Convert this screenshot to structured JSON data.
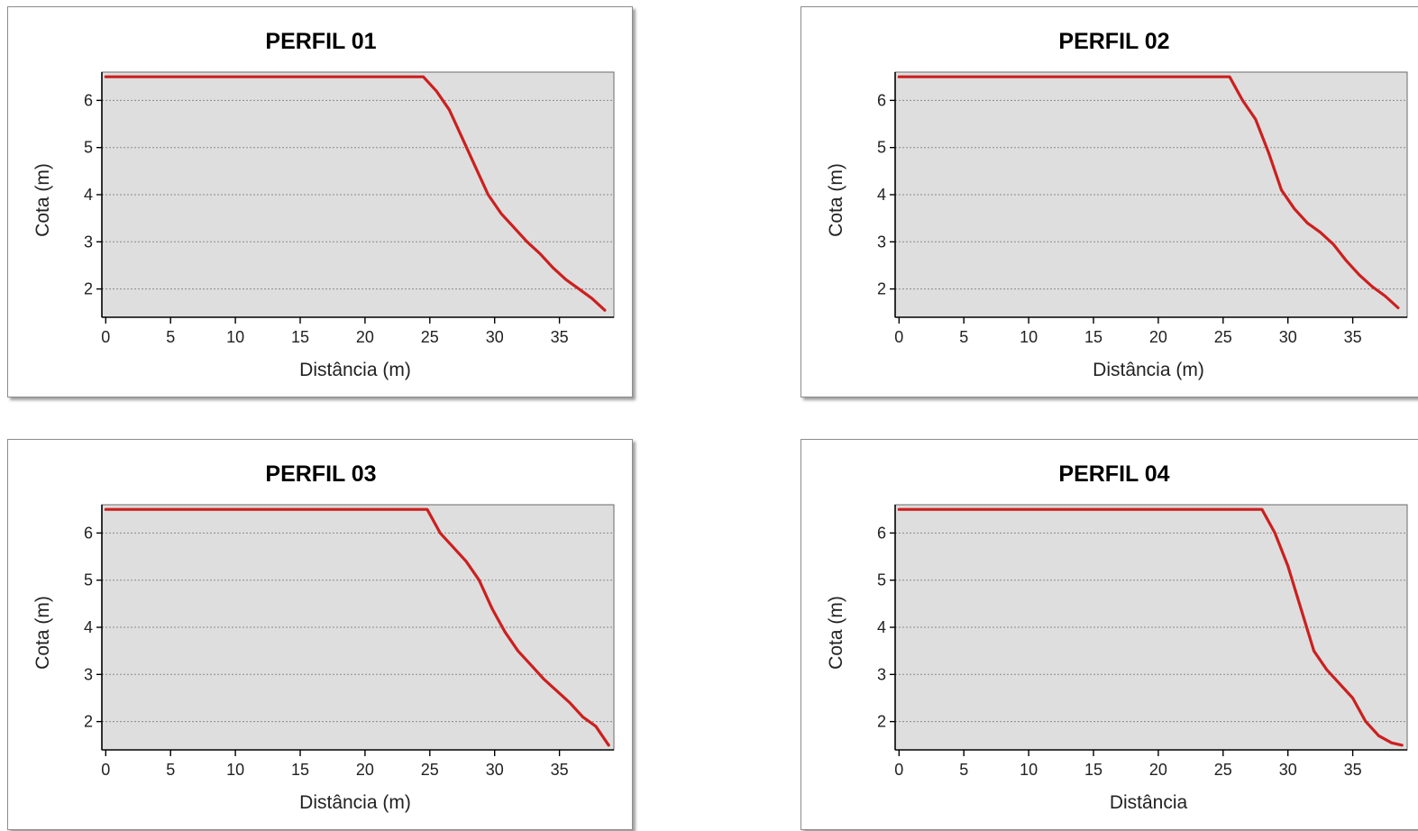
{
  "colors": {
    "plot_background": "#dedede",
    "series_line": "#cc1f1f",
    "grid": "#8a8a8a",
    "axis": "#000000"
  },
  "chart_data": [
    {
      "type": "line",
      "title": "PERFIL 01",
      "xlabel": "Distância (m)",
      "ylabel": "Cota (m)",
      "xlim": [
        -0.3,
        39.2
      ],
      "ylim": [
        1.4,
        6.6
      ],
      "xticks": [
        0,
        5,
        10,
        15,
        20,
        25,
        30,
        35
      ],
      "xtick_labels": [
        "0",
        "5",
        "10",
        "15",
        "20",
        "25",
        "30",
        "35"
      ],
      "yticks": [
        2,
        3,
        4,
        5,
        6
      ],
      "ytick_labels": [
        "2",
        "3",
        "4",
        "5",
        "6"
      ],
      "grid": "horizontal dotted",
      "legend": "none",
      "series": [
        {
          "x": [
            0,
            24.5,
            25.5,
            26.5,
            27.5,
            28.5,
            29.5,
            30.5,
            31.5,
            32.5,
            33.5,
            34.5,
            35.5,
            36.5,
            37.5,
            38.5
          ],
          "y": [
            6.5,
            6.5,
            6.2,
            5.8,
            5.2,
            4.6,
            4.0,
            3.6,
            3.3,
            3.0,
            2.75,
            2.45,
            2.2,
            2.0,
            1.8,
            1.55
          ]
        }
      ]
    },
    {
      "type": "line",
      "title": "PERFIL 02",
      "xlabel": "Distância (m)",
      "ylabel": "Cota (m)",
      "xlim": [
        -0.3,
        39.2
      ],
      "ylim": [
        1.4,
        6.6
      ],
      "xticks": [
        0,
        5,
        10,
        15,
        20,
        25,
        30,
        35
      ],
      "xtick_labels": [
        "0",
        "5",
        "10",
        "15",
        "20",
        "25",
        "30",
        "35"
      ],
      "yticks": [
        2,
        3,
        4,
        5,
        6
      ],
      "ytick_labels": [
        "2",
        "3",
        "4",
        "5",
        "6"
      ],
      "grid": "horizontal dotted",
      "legend": "none",
      "series": [
        {
          "x": [
            0,
            25.5,
            26.5,
            27.5,
            28.5,
            29.5,
            30.5,
            31.5,
            32.5,
            33.5,
            34.5,
            35.5,
            36.5,
            37.5,
            38.5
          ],
          "y": [
            6.5,
            6.5,
            6.0,
            5.6,
            4.9,
            4.1,
            3.7,
            3.4,
            3.2,
            2.95,
            2.6,
            2.3,
            2.05,
            1.85,
            1.6
          ]
        }
      ]
    },
    {
      "type": "line",
      "title": "PERFIL 03",
      "xlabel": "Distância (m)",
      "ylabel": "Cota (m)",
      "xlim": [
        -0.3,
        39.2
      ],
      "ylim": [
        1.4,
        6.6
      ],
      "xticks": [
        0,
        5,
        10,
        15,
        20,
        25,
        30,
        35
      ],
      "xtick_labels": [
        "0",
        "5",
        "10",
        "15",
        "20",
        "25",
        "30",
        "35"
      ],
      "yticks": [
        2,
        3,
        4,
        5,
        6
      ],
      "ytick_labels": [
        "2",
        "3",
        "4",
        "5",
        "6"
      ],
      "grid": "horizontal dotted",
      "legend": "none",
      "series": [
        {
          "x": [
            0,
            24.8,
            25.8,
            26.8,
            27.8,
            28.8,
            29.8,
            30.8,
            31.8,
            32.8,
            33.8,
            34.8,
            35.8,
            36.8,
            37.8,
            38.8
          ],
          "y": [
            6.5,
            6.5,
            6.0,
            5.7,
            5.4,
            5.0,
            4.4,
            3.9,
            3.5,
            3.2,
            2.9,
            2.65,
            2.4,
            2.1,
            1.9,
            1.5
          ]
        }
      ]
    },
    {
      "type": "line",
      "title": "PERFIL 04",
      "xlabel": "Distância",
      "ylabel": "Cota (m)",
      "xlim": [
        -0.3,
        39.2
      ],
      "ylim": [
        1.4,
        6.6
      ],
      "xticks": [
        0,
        5,
        10,
        15,
        20,
        25,
        30,
        35
      ],
      "xtick_labels": [
        "0",
        "5",
        "10",
        "15",
        "20",
        "25",
        "30",
        "35"
      ],
      "yticks": [
        2,
        3,
        4,
        5,
        6
      ],
      "ytick_labels": [
        "2",
        "3",
        "4",
        "5",
        "6"
      ],
      "grid": "horizontal dotted",
      "legend": "none",
      "series": [
        {
          "x": [
            0,
            28,
            29,
            30,
            31,
            32,
            33,
            34,
            35,
            36,
            37,
            38,
            38.8
          ],
          "y": [
            6.5,
            6.5,
            6.0,
            5.3,
            4.4,
            3.5,
            3.1,
            2.8,
            2.5,
            2.0,
            1.7,
            1.55,
            1.5
          ]
        }
      ]
    }
  ]
}
